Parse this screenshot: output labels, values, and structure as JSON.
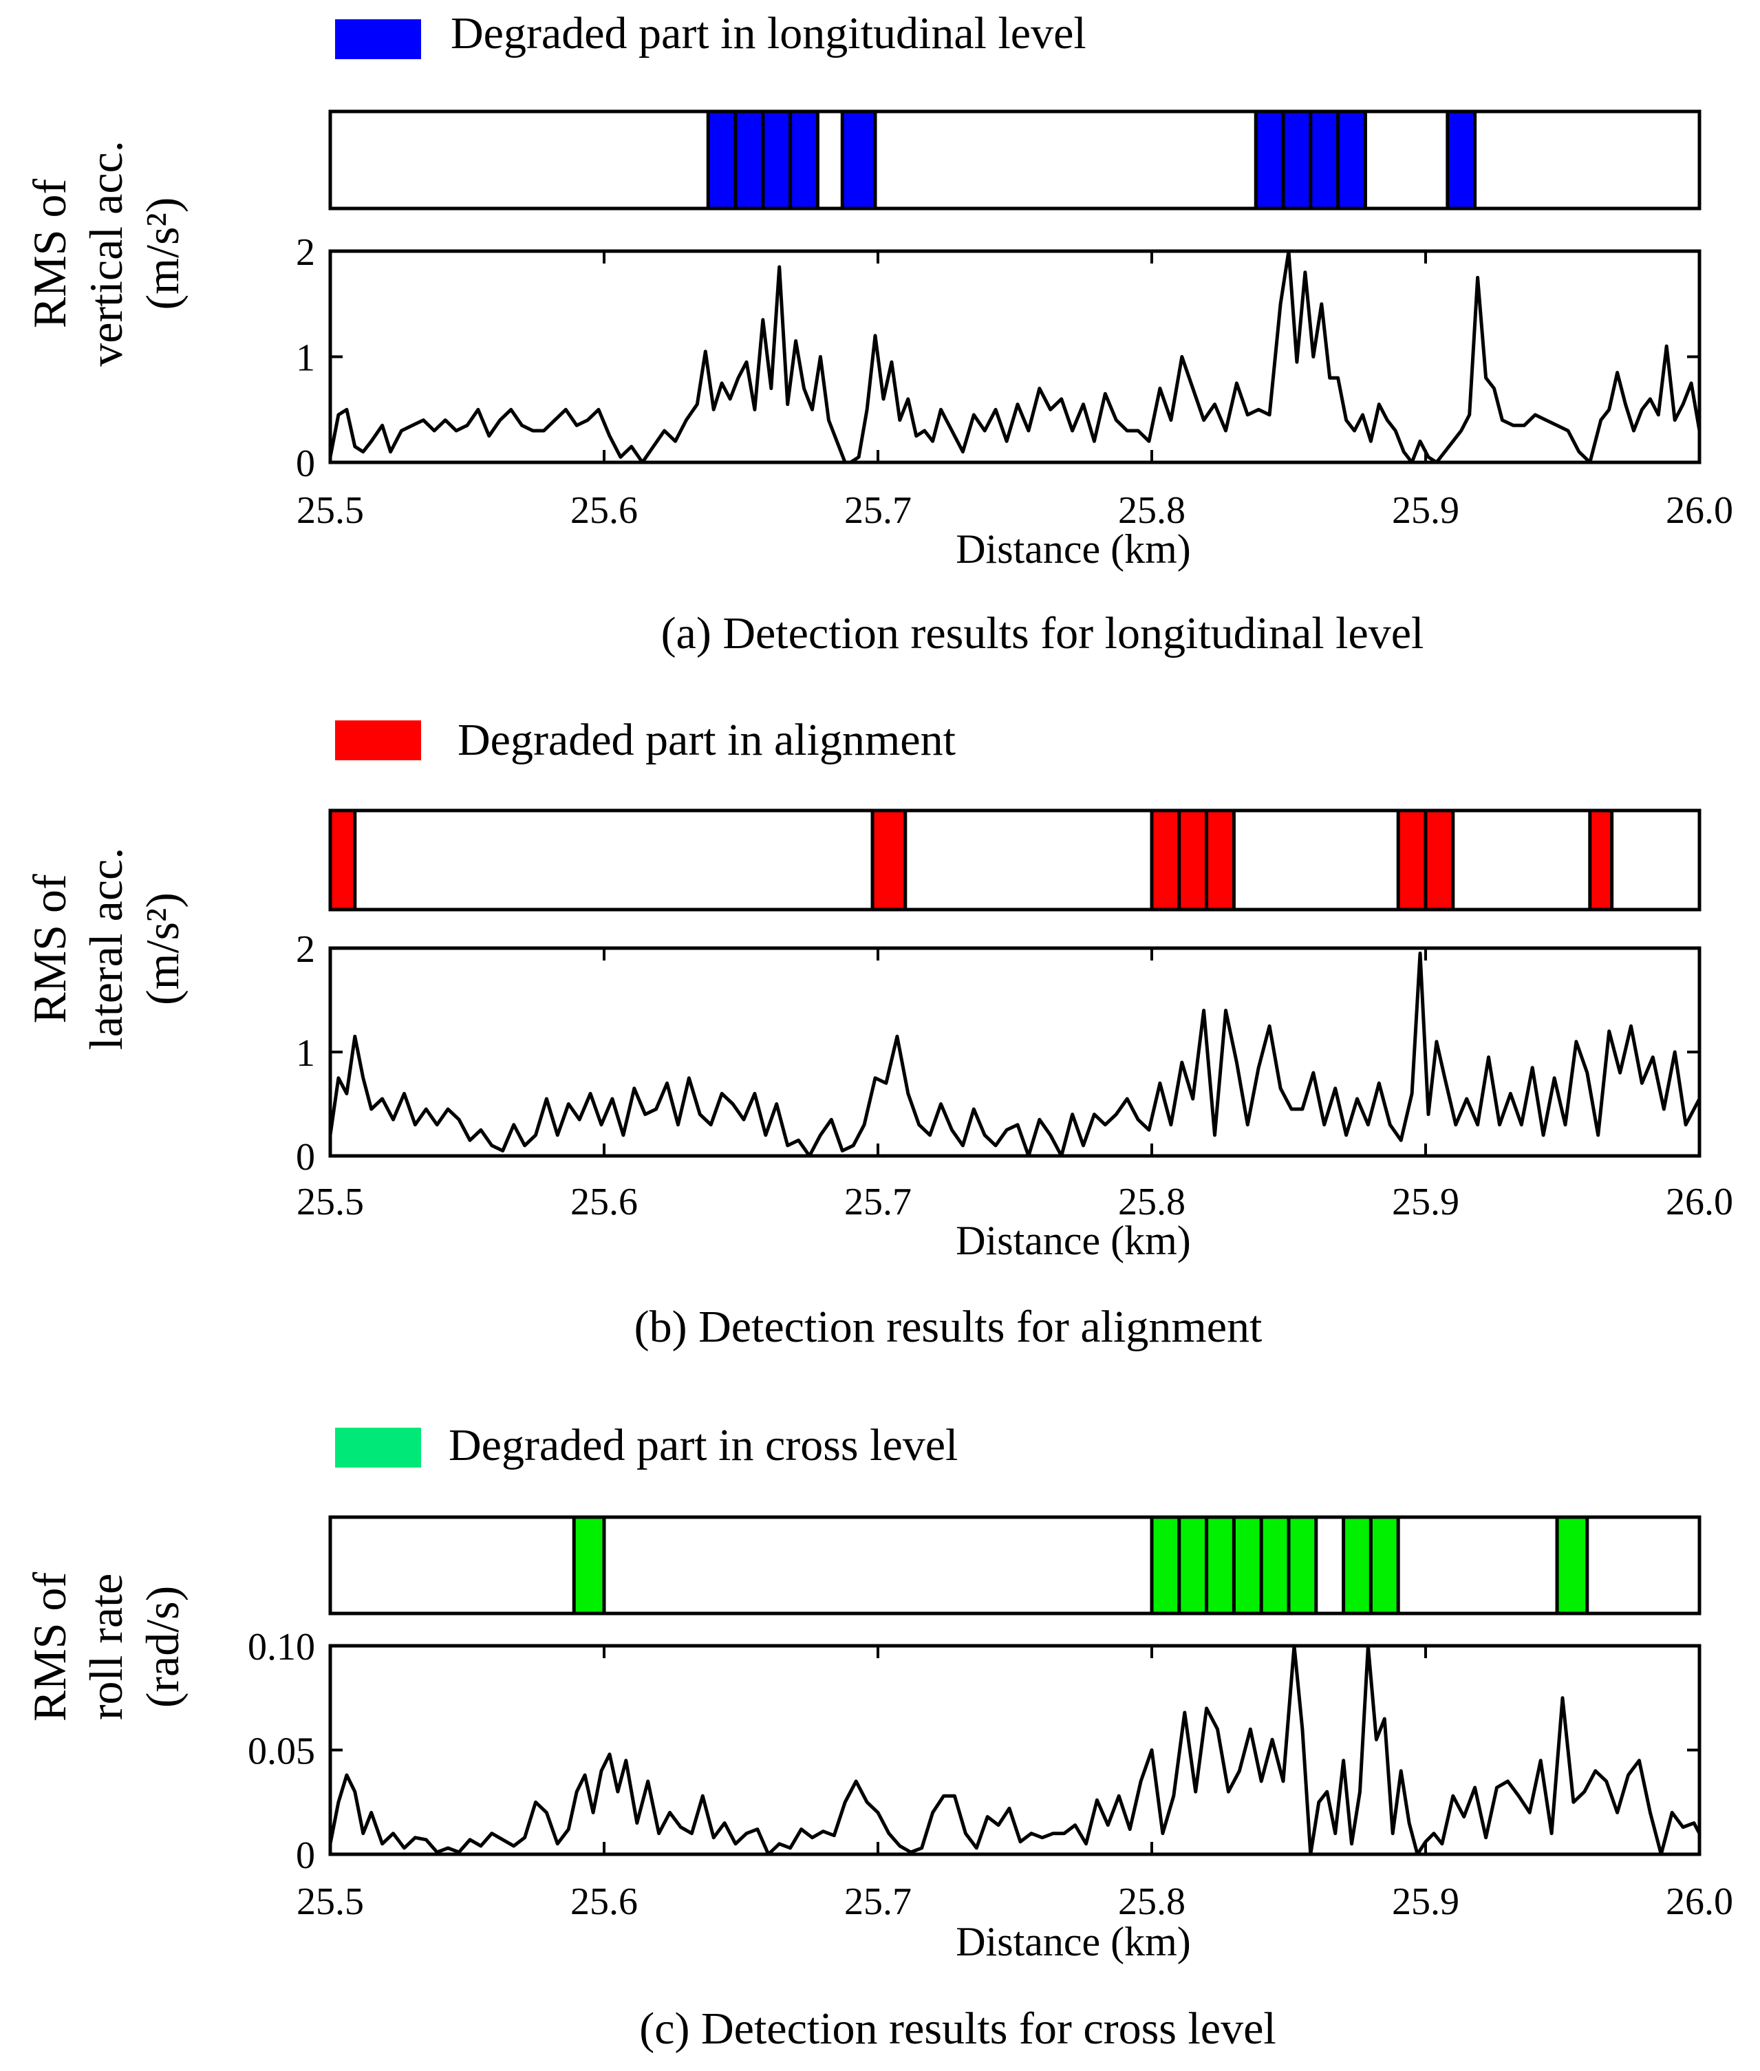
{
  "figure": {
    "x_tick_labels": [
      "25.5",
      "25.6",
      "25.7",
      "25.8",
      "25.9",
      "26.0"
    ]
  },
  "chart_data": [
    {
      "type": "line",
      "id": "a",
      "caption": "(a) Detection  results  for longitudinal  level",
      "legend_label": "Degraded part in longitudinal  level",
      "color": "#0000ff",
      "ylabel_lines": [
        "RMS of",
        "vertical acc.",
        "(m/s²)"
      ],
      "xlabel": "Distance (km)",
      "xlim": [
        25.5,
        26.0
      ],
      "ylim": [
        0,
        2
      ],
      "y_ticks": [
        0,
        1,
        2
      ],
      "y_tick_labels": [
        "0",
        "1",
        "2"
      ],
      "degraded_segments": [
        [
          25.638,
          25.648
        ],
        [
          25.648,
          25.658
        ],
        [
          25.658,
          25.668
        ],
        [
          25.668,
          25.678
        ],
        [
          25.687,
          25.699
        ],
        [
          25.838,
          25.848
        ],
        [
          25.848,
          25.858
        ],
        [
          25.858,
          25.868
        ],
        [
          25.868,
          25.878
        ],
        [
          25.908,
          25.918
        ]
      ],
      "series": [
        {
          "name": "RMS of vertical acc.",
          "x": [
            25.5,
            25.503,
            25.506,
            25.509,
            25.512,
            25.515,
            25.519,
            25.522,
            25.526,
            25.53,
            25.534,
            25.538,
            25.542,
            25.546,
            25.55,
            25.554,
            25.558,
            25.562,
            25.566,
            25.57,
            25.574,
            25.578,
            25.582,
            25.586,
            25.59,
            25.594,
            25.598,
            25.602,
            25.606,
            25.61,
            25.614,
            25.618,
            25.622,
            25.626,
            25.63,
            25.634,
            25.637,
            25.64,
            25.643,
            25.646,
            25.649,
            25.652,
            25.655,
            25.658,
            25.661,
            25.664,
            25.667,
            25.67,
            25.673,
            25.676,
            25.679,
            25.682,
            25.685,
            25.688,
            25.69,
            25.693,
            25.696,
            25.699,
            25.702,
            25.705,
            25.708,
            25.711,
            25.714,
            25.717,
            25.72,
            25.723,
            25.727,
            25.731,
            25.735,
            25.739,
            25.743,
            25.747,
            25.751,
            25.755,
            25.759,
            25.763,
            25.767,
            25.771,
            25.775,
            25.779,
            25.783,
            25.787,
            25.791,
            25.795,
            25.799,
            25.803,
            25.807,
            25.811,
            25.815,
            25.819,
            25.823,
            25.827,
            25.831,
            25.835,
            25.839,
            25.843,
            25.847,
            25.85,
            25.853,
            25.856,
            25.859,
            25.862,
            25.865,
            25.868,
            25.871,
            25.874,
            25.877,
            25.88,
            25.883,
            25.886,
            25.889,
            25.892,
            25.895,
            25.898,
            25.901,
            25.904,
            25.907,
            25.91,
            25.913,
            25.916,
            25.919,
            25.922,
            25.925,
            25.928,
            25.932,
            25.936,
            25.94,
            25.944,
            25.948,
            25.952,
            25.956,
            25.96,
            25.964,
            25.967,
            25.97,
            25.973,
            25.976,
            25.979,
            25.982,
            25.985,
            25.988,
            25.991,
            25.994,
            25.997,
            26.0
          ],
          "values": [
            0.05,
            0.45,
            0.5,
            0.15,
            0.1,
            0.2,
            0.35,
            0.1,
            0.3,
            0.35,
            0.4,
            0.3,
            0.4,
            0.3,
            0.35,
            0.5,
            0.25,
            0.4,
            0.5,
            0.35,
            0.3,
            0.3,
            0.4,
            0.5,
            0.35,
            0.4,
            0.5,
            0.25,
            0.05,
            0.15,
            0.0,
            0.15,
            0.3,
            0.2,
            0.4,
            0.55,
            1.05,
            0.5,
            0.75,
            0.6,
            0.8,
            0.95,
            0.5,
            1.35,
            0.7,
            1.85,
            0.55,
            1.15,
            0.7,
            0.5,
            1.0,
            0.4,
            0.2,
            0.0,
            0.0,
            0.05,
            0.5,
            1.2,
            0.6,
            0.95,
            0.4,
            0.6,
            0.25,
            0.3,
            0.2,
            0.5,
            0.3,
            0.1,
            0.45,
            0.3,
            0.5,
            0.2,
            0.55,
            0.3,
            0.7,
            0.5,
            0.6,
            0.3,
            0.55,
            0.2,
            0.65,
            0.4,
            0.3,
            0.3,
            0.2,
            0.7,
            0.4,
            1.0,
            0.7,
            0.4,
            0.55,
            0.3,
            0.75,
            0.45,
            0.5,
            0.45,
            1.5,
            2.0,
            0.95,
            1.8,
            1.0,
            1.5,
            0.8,
            0.8,
            0.4,
            0.3,
            0.45,
            0.2,
            0.55,
            0.4,
            0.3,
            0.1,
            0.0,
            0.2,
            0.05,
            0.0,
            0.1,
            0.2,
            0.3,
            0.45,
            1.75,
            0.8,
            0.7,
            0.4,
            0.35,
            0.35,
            0.45,
            0.4,
            0.35,
            0.3,
            0.1,
            0.0,
            0.4,
            0.5,
            0.85,
            0.55,
            0.3,
            0.5,
            0.6,
            0.45,
            1.1,
            0.4,
            0.55,
            0.75,
            0.3
          ]
        }
      ]
    },
    {
      "type": "line",
      "id": "b",
      "caption": "(b) Detection  results  for alignment",
      "legend_label": "Degraded part in alignment",
      "color": "#ff0000",
      "ylabel_lines": [
        "RMS of",
        "lateral acc.",
        "(m/s²)"
      ],
      "xlabel": "Distance (km)",
      "xlim": [
        25.5,
        26.0
      ],
      "ylim": [
        0,
        2
      ],
      "y_ticks": [
        0,
        1,
        2
      ],
      "y_tick_labels": [
        "0",
        "1",
        "2"
      ],
      "degraded_segments": [
        [
          25.5,
          25.509
        ],
        [
          25.698,
          25.71
        ],
        [
          25.8,
          25.81
        ],
        [
          25.81,
          25.82
        ],
        [
          25.82,
          25.83
        ],
        [
          25.89,
          25.9
        ],
        [
          25.9,
          25.91
        ],
        [
          25.96,
          25.968
        ]
      ],
      "series": [
        {
          "name": "RMS of lateral acc.",
          "x": [
            25.5,
            25.503,
            25.506,
            25.509,
            25.512,
            25.515,
            25.519,
            25.523,
            25.527,
            25.531,
            25.535,
            25.539,
            25.543,
            25.547,
            25.551,
            25.555,
            25.559,
            25.563,
            25.567,
            25.571,
            25.575,
            25.579,
            25.583,
            25.587,
            25.591,
            25.595,
            25.599,
            25.603,
            25.607,
            25.611,
            25.615,
            25.619,
            25.623,
            25.627,
            25.631,
            25.635,
            25.639,
            25.643,
            25.647,
            25.651,
            25.655,
            25.659,
            25.663,
            25.667,
            25.671,
            25.675,
            25.679,
            25.683,
            25.687,
            25.691,
            25.695,
            25.699,
            25.703,
            25.707,
            25.711,
            25.715,
            25.719,
            25.723,
            25.727,
            25.731,
            25.735,
            25.739,
            25.743,
            25.747,
            25.751,
            25.755,
            25.759,
            25.763,
            25.767,
            25.771,
            25.775,
            25.779,
            25.783,
            25.787,
            25.791,
            25.795,
            25.799,
            25.803,
            25.807,
            25.811,
            25.815,
            25.819,
            25.823,
            25.827,
            25.831,
            25.835,
            25.839,
            25.843,
            25.847,
            25.851,
            25.855,
            25.859,
            25.863,
            25.867,
            25.871,
            25.875,
            25.879,
            25.883,
            25.887,
            25.891,
            25.895,
            25.898,
            25.901,
            25.904,
            25.907,
            25.911,
            25.915,
            25.919,
            25.923,
            25.927,
            25.931,
            25.935,
            25.939,
            25.943,
            25.947,
            25.951,
            25.955,
            25.959,
            25.963,
            25.967,
            25.971,
            25.975,
            25.979,
            25.983,
            25.987,
            25.991,
            25.995,
            26.0
          ],
          "values": [
            0.2,
            0.75,
            0.6,
            1.15,
            0.75,
            0.45,
            0.55,
            0.35,
            0.6,
            0.3,
            0.45,
            0.3,
            0.45,
            0.35,
            0.15,
            0.25,
            0.1,
            0.05,
            0.3,
            0.1,
            0.2,
            0.55,
            0.2,
            0.5,
            0.35,
            0.6,
            0.3,
            0.55,
            0.2,
            0.65,
            0.4,
            0.45,
            0.7,
            0.3,
            0.75,
            0.4,
            0.3,
            0.6,
            0.5,
            0.35,
            0.6,
            0.2,
            0.5,
            0.1,
            0.15,
            0.0,
            0.2,
            0.35,
            0.05,
            0.1,
            0.3,
            0.75,
            0.7,
            1.15,
            0.6,
            0.3,
            0.2,
            0.5,
            0.25,
            0.1,
            0.45,
            0.2,
            0.1,
            0.25,
            0.3,
            0.0,
            0.35,
            0.2,
            0.0,
            0.4,
            0.1,
            0.4,
            0.3,
            0.4,
            0.55,
            0.35,
            0.25,
            0.7,
            0.3,
            0.9,
            0.55,
            1.4,
            0.2,
            1.4,
            0.9,
            0.3,
            0.85,
            1.25,
            0.65,
            0.45,
            0.45,
            0.8,
            0.3,
            0.65,
            0.2,
            0.55,
            0.3,
            0.7,
            0.3,
            0.15,
            0.6,
            1.95,
            0.4,
            1.1,
            0.75,
            0.3,
            0.55,
            0.3,
            0.95,
            0.3,
            0.6,
            0.3,
            0.85,
            0.2,
            0.75,
            0.3,
            1.1,
            0.8,
            0.2,
            1.2,
            0.8,
            1.25,
            0.7,
            0.95,
            0.45,
            1.0,
            0.3,
            0.55
          ]
        }
      ]
    },
    {
      "type": "line",
      "id": "c",
      "caption": "(c) Detection  results  for cross level",
      "legend_label": "Degraded part in cross level",
      "color": "#00f000",
      "legend_color": "#00e878",
      "ylabel_lines": [
        "RMS of",
        "roll rate",
        "(rad/s)"
      ],
      "xlabel": "Distance (km)",
      "xlim": [
        25.5,
        26.0
      ],
      "ylim": [
        0,
        0.1
      ],
      "y_ticks": [
        0,
        0.05,
        0.1
      ],
      "y_tick_labels": [
        "0",
        "0.05",
        "0.10"
      ],
      "degraded_segments": [
        [
          25.589,
          25.6
        ],
        [
          25.8,
          25.81
        ],
        [
          25.81,
          25.82
        ],
        [
          25.82,
          25.83
        ],
        [
          25.83,
          25.84
        ],
        [
          25.84,
          25.85
        ],
        [
          25.85,
          25.86
        ],
        [
          25.87,
          25.88
        ],
        [
          25.88,
          25.89
        ],
        [
          25.948,
          25.959
        ]
      ],
      "series": [
        {
          "name": "RMS of roll rate",
          "x": [
            25.5,
            25.503,
            25.506,
            25.509,
            25.512,
            25.515,
            25.519,
            25.523,
            25.527,
            25.531,
            25.535,
            25.539,
            25.543,
            25.547,
            25.551,
            25.555,
            25.559,
            25.563,
            25.567,
            25.571,
            25.575,
            25.579,
            25.583,
            25.587,
            25.59,
            25.593,
            25.596,
            25.599,
            25.602,
            25.605,
            25.608,
            25.612,
            25.616,
            25.62,
            25.624,
            25.628,
            25.632,
            25.636,
            25.64,
            25.644,
            25.648,
            25.652,
            25.656,
            25.66,
            25.664,
            25.668,
            25.672,
            25.676,
            25.68,
            25.684,
            25.688,
            25.692,
            25.696,
            25.7,
            25.704,
            25.708,
            25.712,
            25.716,
            25.72,
            25.724,
            25.728,
            25.732,
            25.736,
            25.74,
            25.744,
            25.748,
            25.752,
            25.756,
            25.76,
            25.764,
            25.768,
            25.772,
            25.776,
            25.78,
            25.784,
            25.788,
            25.792,
            25.796,
            25.8,
            25.804,
            25.808,
            25.812,
            25.816,
            25.82,
            25.824,
            25.828,
            25.832,
            25.836,
            25.84,
            25.844,
            25.848,
            25.852,
            25.855,
            25.858,
            25.861,
            25.864,
            25.867,
            25.87,
            25.873,
            25.876,
            25.879,
            25.882,
            25.885,
            25.888,
            25.891,
            25.894,
            25.897,
            25.9,
            25.903,
            25.906,
            25.91,
            25.914,
            25.918,
            25.922,
            25.926,
            25.93,
            25.934,
            25.938,
            25.942,
            25.946,
            25.95,
            25.954,
            25.958,
            25.962,
            25.966,
            25.97,
            25.974,
            25.978,
            25.982,
            25.986,
            25.99,
            25.994,
            25.998,
            26.0
          ],
          "values": [
            0.005,
            0.025,
            0.038,
            0.03,
            0.01,
            0.02,
            0.005,
            0.01,
            0.003,
            0.008,
            0.007,
            0.001,
            0.003,
            0.001,
            0.007,
            0.004,
            0.01,
            0.007,
            0.004,
            0.008,
            0.025,
            0.02,
            0.005,
            0.012,
            0.03,
            0.038,
            0.02,
            0.04,
            0.048,
            0.03,
            0.045,
            0.015,
            0.035,
            0.01,
            0.02,
            0.013,
            0.01,
            0.028,
            0.008,
            0.015,
            0.005,
            0.01,
            0.012,
            0.0,
            0.005,
            0.003,
            0.012,
            0.008,
            0.011,
            0.009,
            0.025,
            0.035,
            0.025,
            0.02,
            0.01,
            0.004,
            0.001,
            0.003,
            0.02,
            0.028,
            0.028,
            0.01,
            0.003,
            0.018,
            0.014,
            0.022,
            0.006,
            0.01,
            0.008,
            0.01,
            0.01,
            0.014,
            0.005,
            0.026,
            0.014,
            0.028,
            0.012,
            0.035,
            0.05,
            0.01,
            0.028,
            0.068,
            0.03,
            0.07,
            0.06,
            0.03,
            0.04,
            0.06,
            0.035,
            0.055,
            0.035,
            0.1,
            0.06,
            0.0,
            0.025,
            0.03,
            0.01,
            0.045,
            0.005,
            0.03,
            0.1,
            0.055,
            0.065,
            0.01,
            0.04,
            0.015,
            0.0,
            0.006,
            0.01,
            0.005,
            0.028,
            0.018,
            0.032,
            0.008,
            0.032,
            0.035,
            0.028,
            0.02,
            0.045,
            0.01,
            0.075,
            0.025,
            0.03,
            0.04,
            0.035,
            0.02,
            0.038,
            0.045,
            0.02,
            0.0,
            0.02,
            0.013,
            0.015,
            0.01
          ]
        }
      ]
    }
  ]
}
